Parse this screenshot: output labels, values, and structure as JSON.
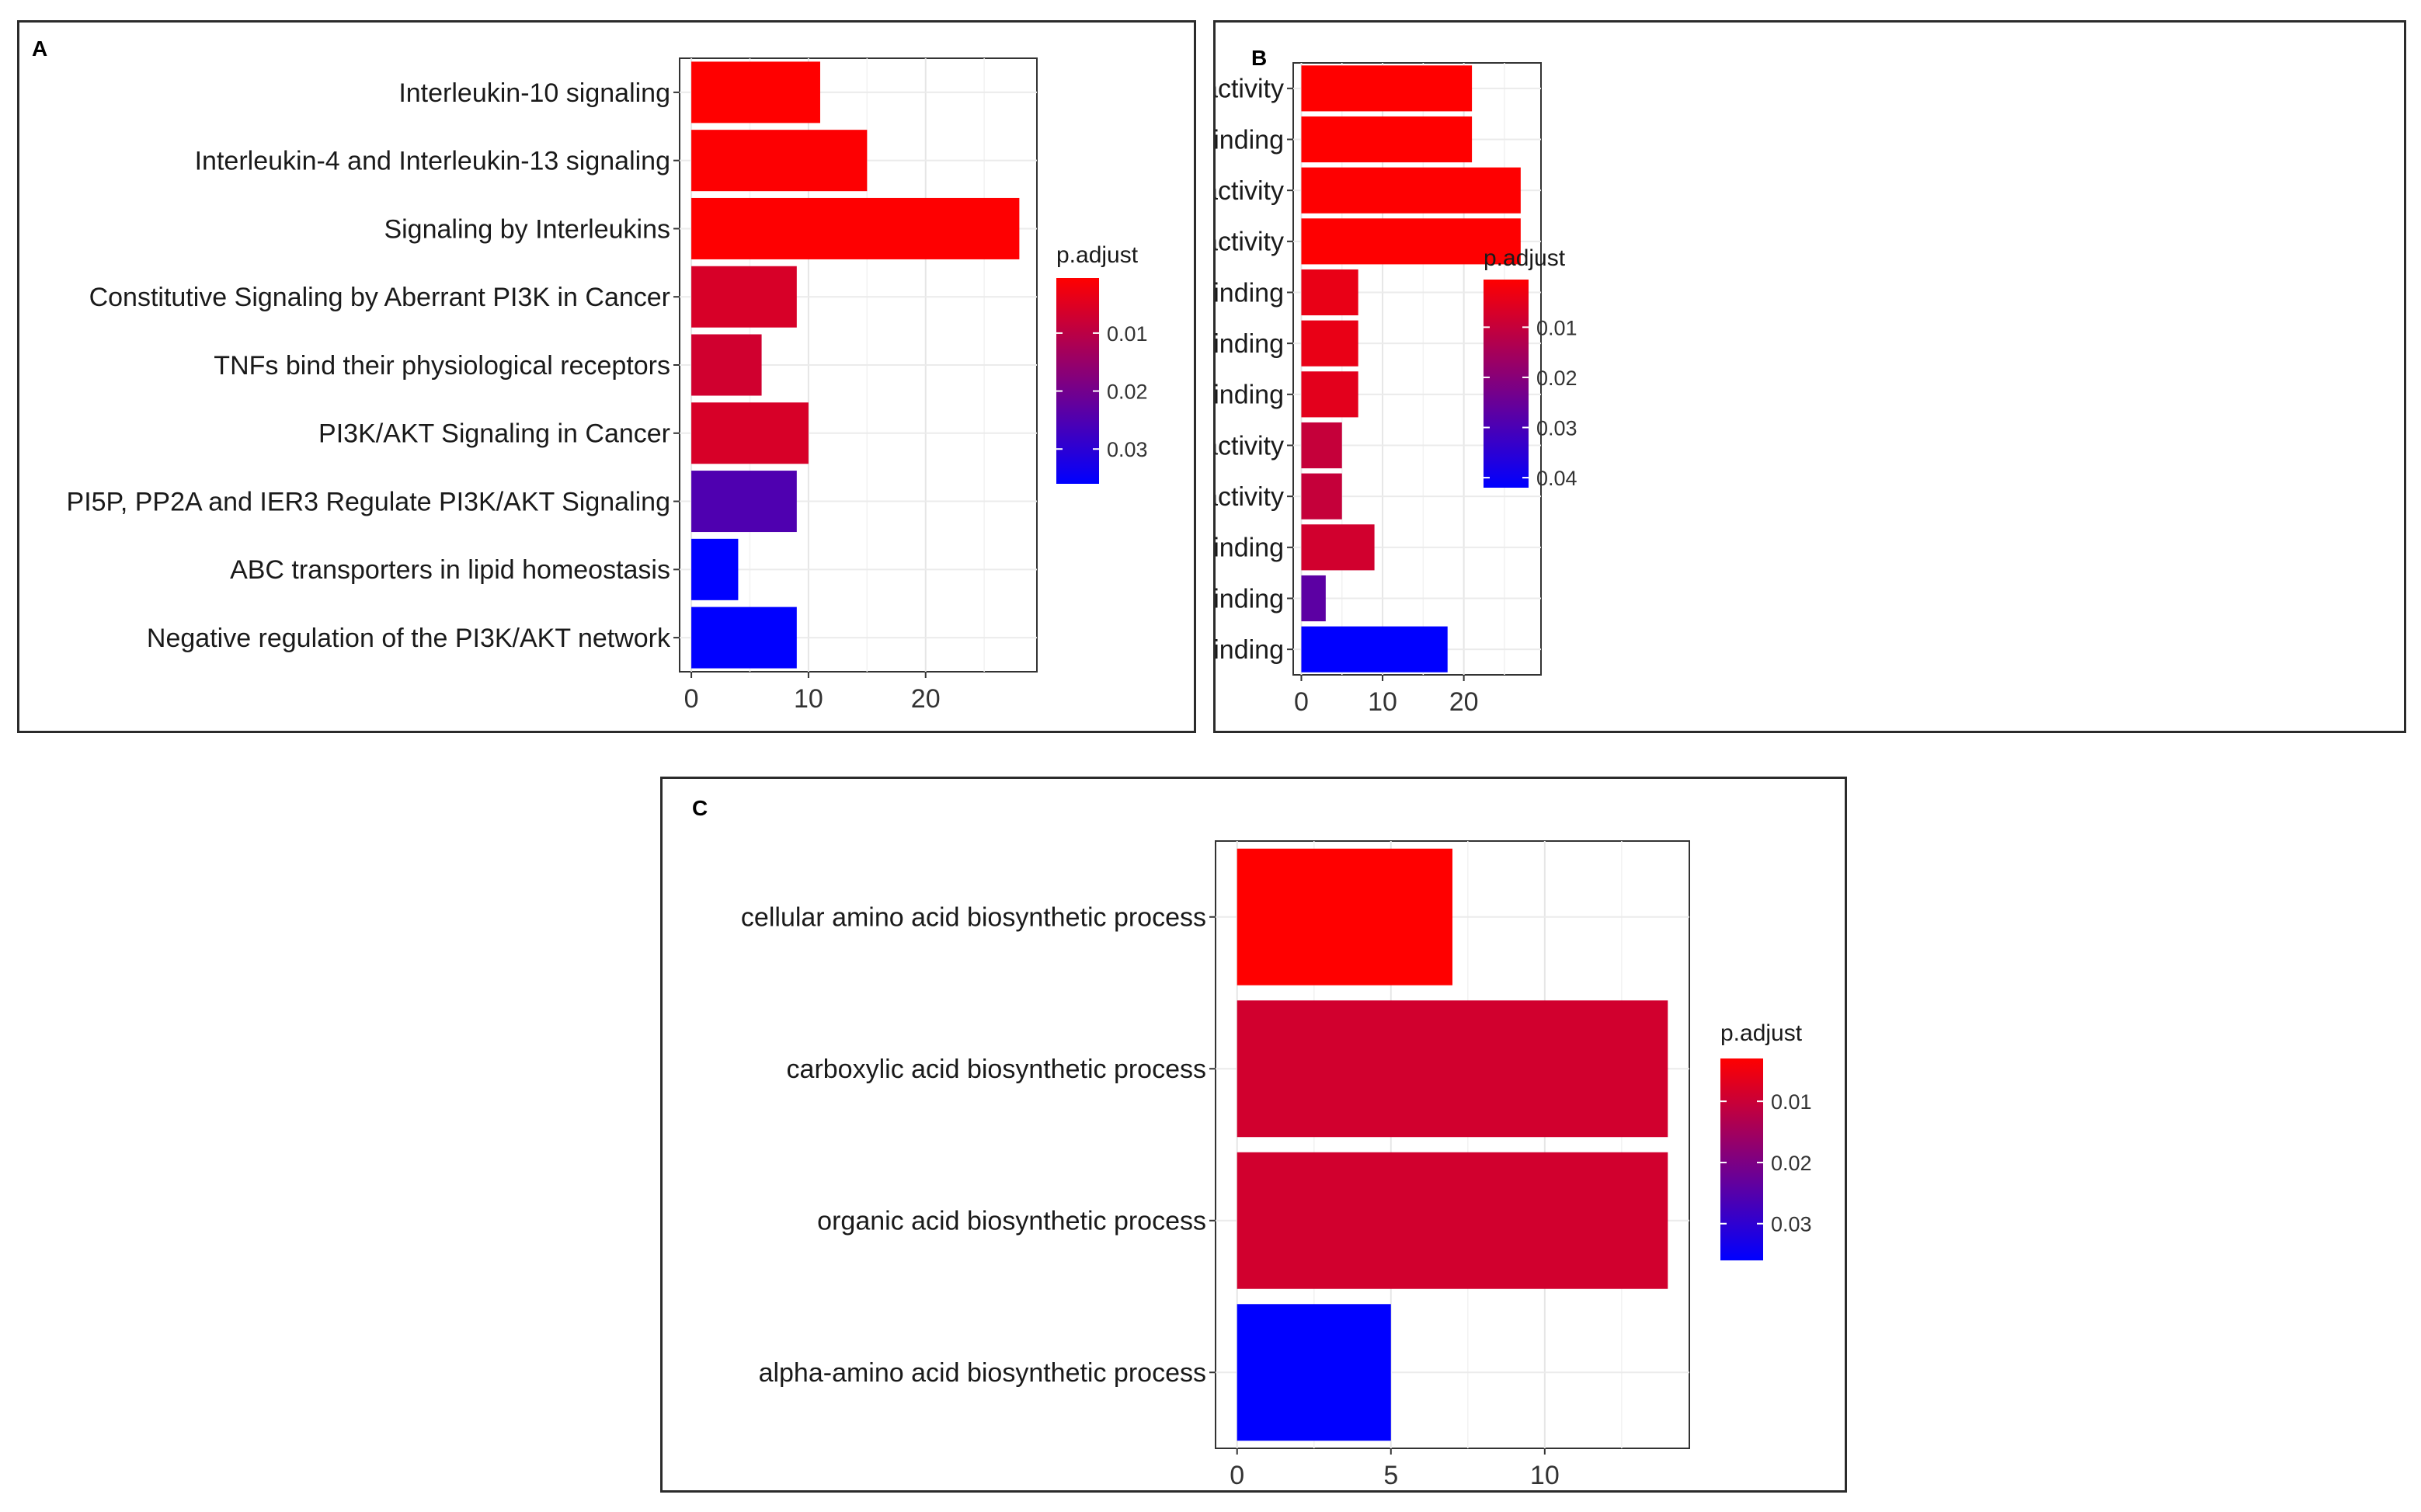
{
  "chart_data": [
    {
      "type": "bar",
      "orientation": "horizontal",
      "panel_label": "A",
      "categories": [
        "Interleukin-10 signaling",
        "Interleukin-4 and Interleukin-13 signaling",
        "Signaling by Interleukins",
        "Constitutive Signaling by Aberrant PI3K in Cancer",
        "TNFs bind their physiological receptors",
        "PI3K/AKT Signaling in Cancer",
        "PI5P, PP2A and IER3 Regulate PI3K/AKT Signaling",
        "ABC transporters in lipid homeostasis",
        "Negative regulation of the PI3K/AKT network"
      ],
      "values": [
        11,
        15,
        28,
        9,
        6,
        10,
        9,
        4,
        9
      ],
      "p_adjust": [
        0.0005,
        0.0008,
        0.0006,
        0.006,
        0.007,
        0.006,
        0.025,
        0.036,
        0.036
      ],
      "xlim": [
        -1,
        29.5
      ],
      "x_ticks": [
        0,
        10,
        20
      ],
      "xlabel": "",
      "ylabel": "",
      "legend": {
        "title": "p.adjust",
        "position": "right",
        "min": 0.0005,
        "max": 0.036,
        "ticks": [
          0.01,
          0.02,
          0.03
        ],
        "tick_labels": [
          "0.01",
          "0.02",
          "0.03"
        ]
      },
      "colors": {
        "low": "#ff0000",
        "high": "#0000ff"
      }
    },
    {
      "type": "bar",
      "orientation": "horizontal",
      "panel_label": "B",
      "categories": [
        "cytokine activity",
        "cytokine receptor binding",
        "receptor ligand activity",
        "receptor regulator activity",
        "tumor necrosis factor receptor binding",
        "tumor necrosis factor receptor superfamily binding",
        "chemokine receptor binding",
        "chemoattractant activity",
        "chemokine activity",
        "integrin binding",
        "CXCR chemokine receptor binding",
        "cell adhesion molecule binding"
      ],
      "values": [
        21,
        21,
        27,
        27,
        7,
        7,
        7,
        5,
        5,
        9,
        3,
        18
      ],
      "p_adjust": [
        0.0005,
        0.0005,
        0.0006,
        0.0006,
        0.004,
        0.004,
        0.005,
        0.01,
        0.01,
        0.008,
        0.027,
        0.042
      ],
      "xlim": [
        -1,
        29.5
      ],
      "x_ticks": [
        0,
        10,
        20
      ],
      "xlabel": "",
      "ylabel": "",
      "legend": {
        "title": "p.adjust",
        "position": "right",
        "min": 0.0005,
        "max": 0.042,
        "ticks": [
          0.01,
          0.02,
          0.03,
          0.04
        ],
        "tick_labels": [
          "0.01",
          "0.02",
          "0.03",
          "0.04"
        ]
      },
      "colors": {
        "low": "#ff0000",
        "high": "#0000ff"
      }
    },
    {
      "type": "bar",
      "orientation": "horizontal",
      "panel_label": "C",
      "categories": [
        "cellular amino acid biosynthetic process",
        "carboxylic acid biosynthetic process",
        "organic acid biosynthetic process",
        "alpha-amino acid biosynthetic process"
      ],
      "values": [
        7,
        14,
        14,
        5
      ],
      "p_adjust": [
        0.003,
        0.009,
        0.009,
        0.036
      ],
      "xlim": [
        -0.7,
        14.7
      ],
      "x_ticks": [
        0,
        5,
        10
      ],
      "xlabel": "",
      "ylabel": "",
      "legend": {
        "title": "p.adjust",
        "position": "right",
        "min": 0.003,
        "max": 0.036,
        "ticks": [
          0.01,
          0.02,
          0.03
        ],
        "tick_labels": [
          "0.01",
          "0.02",
          "0.03"
        ]
      },
      "colors": {
        "low": "#ff0000",
        "high": "#0000ff"
      }
    }
  ]
}
